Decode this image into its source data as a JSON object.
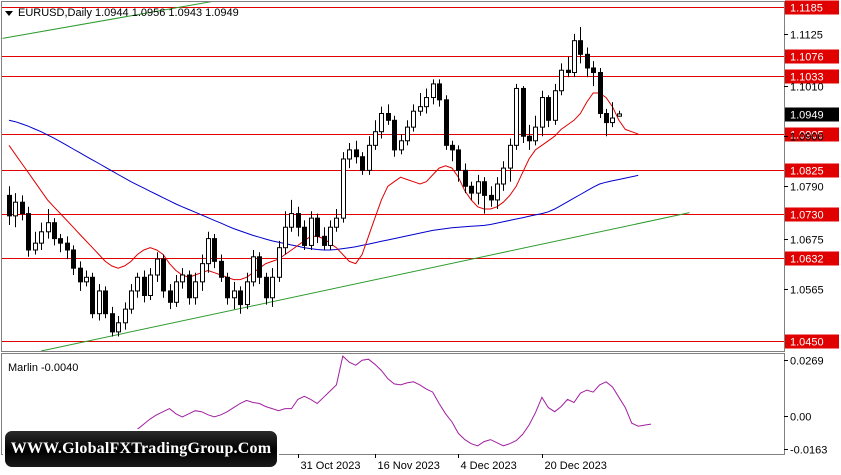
{
  "header": {
    "symbol_line": "EURUSD,Daily  1.0944 1.0956 1.0943 1.0949"
  },
  "indicator": {
    "label": "Marlin -0.0040"
  },
  "watermark": {
    "text": "WWW.GlobalFXTradingGroup.Com"
  },
  "colors": {
    "bull": "#ffffff",
    "bear": "#000000",
    "wick": "#000000",
    "level_line": "#e00000",
    "level_tag": "#e00000",
    "ma_fast": "#e00000",
    "ma_slow": "#0000cc",
    "trend": "#2e9b2e",
    "oscillator": "#a020a0",
    "current_tag_bg": "#000000",
    "current_tag_fg": "#ffffff"
  },
  "chart_data": [
    {
      "type": "candlestick",
      "title": "EURUSD,Daily",
      "ohlc_last": {
        "open": 1.0944,
        "high": 1.0956,
        "low": 1.0943,
        "close": 1.0949
      },
      "y_ticks": [
        "1.1125",
        "1.1010",
        "1.0900",
        "1.0790",
        "1.0675",
        "1.0565"
      ],
      "y_range": [
        1.0428,
        1.1195
      ],
      "x_tick_labels": [
        "31 Oct 2023",
        "16 Nov 2023",
        "4 Dec 2023",
        "20 Dec 2023"
      ],
      "x_tick_index": [
        45,
        57,
        70,
        83
      ],
      "current_price": "1.0949",
      "levels": [
        {
          "label": "1.1185",
          "value": 1.1185
        },
        {
          "label": "1.1076",
          "value": 1.1076
        },
        {
          "label": "1.1033",
          "value": 1.1033
        },
        {
          "label": "1.0905",
          "value": 1.0905
        },
        {
          "label": "1.0825",
          "value": 1.0825
        },
        {
          "label": "1.0730",
          "value": 1.073
        },
        {
          "label": "1.0632",
          "value": 1.0632
        },
        {
          "label": "1.0450",
          "value": 1.045
        }
      ],
      "candles": [
        [
          1.077,
          1.0725,
          1.079,
          1.0705
        ],
        [
          1.0725,
          1.0755,
          1.0775,
          1.07
        ],
        [
          1.0755,
          1.073,
          1.077,
          1.0715
        ],
        [
          1.073,
          1.065,
          1.0745,
          1.0635
        ],
        [
          1.065,
          1.0665,
          1.069,
          1.064
        ],
        [
          1.0665,
          1.069,
          1.071,
          1.065
        ],
        [
          1.069,
          1.071,
          1.074,
          1.0675
        ],
        [
          1.071,
          1.0675,
          1.072,
          1.066
        ],
        [
          1.0675,
          1.0665,
          1.0685,
          1.0645
        ],
        [
          1.0665,
          1.065,
          1.068,
          1.063
        ],
        [
          1.065,
          1.061,
          1.066,
          1.0595
        ],
        [
          1.061,
          1.058,
          1.0625,
          1.056
        ],
        [
          1.058,
          1.059,
          1.0605,
          1.057
        ],
        [
          1.059,
          1.051,
          1.06,
          1.05
        ],
        [
          1.051,
          1.056,
          1.0575,
          1.0495
        ],
        [
          1.056,
          1.051,
          1.057,
          1.05
        ],
        [
          1.051,
          1.047,
          1.0525,
          1.046
        ],
        [
          1.047,
          1.049,
          1.0505,
          1.046
        ],
        [
          1.049,
          1.052,
          1.0535,
          1.0475
        ],
        [
          1.052,
          1.056,
          1.0575,
          1.051
        ],
        [
          1.056,
          1.059,
          1.06,
          1.0545
        ],
        [
          1.059,
          1.055,
          1.0605,
          1.0535
        ],
        [
          1.055,
          1.0595,
          1.061,
          1.054
        ],
        [
          1.0595,
          1.063,
          1.0645,
          1.058
        ],
        [
          1.063,
          1.056,
          1.064,
          1.0545
        ],
        [
          1.056,
          1.0535,
          1.0575,
          1.052
        ],
        [
          1.0535,
          1.058,
          1.0595,
          1.0525
        ],
        [
          1.058,
          1.0595,
          1.061,
          1.0565
        ],
        [
          1.0595,
          1.0545,
          1.0605,
          1.053
        ],
        [
          1.0545,
          1.058,
          1.06,
          1.053
        ],
        [
          1.058,
          1.062,
          1.064,
          1.056
        ],
        [
          1.062,
          1.0675,
          1.069,
          1.06
        ],
        [
          1.0675,
          1.0625,
          1.0685,
          1.061
        ],
        [
          1.0625,
          1.059,
          1.064,
          1.058
        ],
        [
          1.059,
          1.0545,
          1.06,
          1.053
        ],
        [
          1.0545,
          1.056,
          1.058,
          1.052
        ],
        [
          1.056,
          1.053,
          1.057,
          1.051
        ],
        [
          1.053,
          1.058,
          1.06,
          1.052
        ],
        [
          1.058,
          1.0635,
          1.065,
          1.057
        ],
        [
          1.0635,
          1.059,
          1.0645,
          1.0575
        ],
        [
          1.059,
          1.0545,
          1.06,
          1.053
        ],
        [
          1.0545,
          1.059,
          1.061,
          1.0525
        ],
        [
          1.059,
          1.0655,
          1.067,
          1.058
        ],
        [
          1.0655,
          1.07,
          1.0735,
          1.064
        ],
        [
          1.07,
          1.073,
          1.076,
          1.069
        ],
        [
          1.073,
          1.07,
          1.0745,
          1.068
        ],
        [
          1.07,
          1.066,
          1.0715,
          1.065
        ],
        [
          1.066,
          1.072,
          1.0735,
          1.065
        ],
        [
          1.072,
          1.068,
          1.073,
          1.0665
        ],
        [
          1.068,
          1.066,
          1.07,
          1.065
        ],
        [
          1.066,
          1.07,
          1.0715,
          1.065
        ],
        [
          1.07,
          1.072,
          1.074,
          1.069
        ],
        [
          1.072,
          1.085,
          1.0865,
          1.071
        ],
        [
          1.085,
          1.087,
          1.0885,
          1.083
        ],
        [
          1.087,
          1.0855,
          1.089,
          1.084
        ],
        [
          1.0855,
          1.0825,
          1.0865,
          1.0815
        ],
        [
          1.0825,
          1.088,
          1.09,
          1.0815
        ],
        [
          1.088,
          1.091,
          1.0935,
          1.087
        ],
        [
          1.091,
          1.095,
          1.0965,
          1.0895
        ],
        [
          1.095,
          1.0935,
          1.097,
          1.0925
        ],
        [
          1.0935,
          1.087,
          1.0945,
          1.0855
        ],
        [
          1.087,
          1.089,
          1.0905,
          1.086
        ],
        [
          1.089,
          1.092,
          1.0935,
          1.088
        ],
        [
          1.092,
          1.0955,
          1.097,
          1.091
        ],
        [
          1.0955,
          1.0965,
          1.0995,
          1.0945
        ],
        [
          1.0965,
          1.0985,
          1.1005,
          1.095
        ],
        [
          1.0985,
          1.1015,
          1.1025,
          1.097
        ],
        [
          1.1015,
          1.098,
          1.1025,
          1.0965
        ],
        [
          1.098,
          1.088,
          1.099,
          1.087
        ],
        [
          1.088,
          1.087,
          1.089,
          1.0845
        ],
        [
          1.087,
          1.0825,
          1.088,
          1.08
        ],
        [
          1.0825,
          1.079,
          1.084,
          1.0775
        ],
        [
          1.079,
          1.0775,
          1.08,
          1.076
        ],
        [
          1.0775,
          1.08,
          1.0815,
          1.075
        ],
        [
          1.08,
          1.077,
          1.081,
          1.073
        ],
        [
          1.077,
          1.076,
          1.079,
          1.0745
        ],
        [
          1.076,
          1.0795,
          1.081,
          1.074
        ],
        [
          1.0795,
          1.083,
          1.0845,
          1.078
        ],
        [
          1.083,
          1.088,
          1.0895,
          1.08
        ],
        [
          1.088,
          1.1005,
          1.1015,
          1.087
        ],
        [
          1.1005,
          1.09,
          1.101,
          1.0885
        ],
        [
          1.09,
          1.089,
          1.0925,
          1.087
        ],
        [
          1.089,
          1.092,
          1.0945,
          1.088
        ],
        [
          1.092,
          1.0985,
          1.1,
          1.09
        ],
        [
          1.0985,
          1.0935,
          1.099,
          1.092
        ],
        [
          1.0935,
          1.1,
          1.1015,
          1.0925
        ],
        [
          1.1,
          1.1045,
          1.106,
          1.099
        ],
        [
          1.1045,
          1.104,
          1.1075,
          1.103
        ],
        [
          1.104,
          1.111,
          1.1125,
          1.103
        ],
        [
          1.111,
          1.108,
          1.114,
          1.106
        ],
        [
          1.108,
          1.105,
          1.1095,
          1.103
        ],
        [
          1.105,
          1.104,
          1.1065,
          1.101
        ],
        [
          1.104,
          1.095,
          1.105,
          1.094
        ],
        [
          1.095,
          1.093,
          1.096,
          1.09
        ],
        [
          1.093,
          1.094,
          1.0975,
          1.092
        ],
        [
          1.0944,
          1.0949,
          1.0956,
          1.0943
        ]
      ],
      "ma_fast_values": [
        1.088,
        1.086,
        1.084,
        1.082,
        1.08,
        1.078,
        1.076,
        1.0745,
        1.073,
        1.0715,
        1.07,
        1.0685,
        1.067,
        1.0655,
        1.064,
        1.0625,
        1.0615,
        1.061,
        1.0615,
        1.0625,
        1.064,
        1.065,
        1.0655,
        1.065,
        1.064,
        1.062,
        1.0605,
        1.0595,
        1.059,
        1.0595,
        1.06,
        1.0605,
        1.06,
        1.0595,
        1.059,
        1.0585,
        1.0585,
        1.059,
        1.06,
        1.061,
        1.062,
        1.0625,
        1.063,
        1.064,
        1.065,
        1.066,
        1.067,
        1.068,
        1.068,
        1.0675,
        1.0665,
        1.0655,
        1.064,
        1.0625,
        1.062,
        1.064,
        1.068,
        1.072,
        1.076,
        1.079,
        1.08,
        1.081,
        1.0805,
        1.08,
        1.0795,
        1.08,
        1.0815,
        1.083,
        1.0835,
        1.083,
        1.081,
        1.078,
        1.076,
        1.0745,
        1.074,
        1.074,
        1.0745,
        1.0755,
        1.077,
        1.079,
        1.082,
        1.085,
        1.087,
        1.088,
        1.089,
        1.09,
        1.0915,
        1.0925,
        1.0935,
        1.095,
        1.0975,
        1.0995,
        1.0995,
        1.0985,
        1.0965,
        1.0935,
        1.0915,
        1.091,
        1.0905
      ],
      "ma_slow_values": [
        1.0935,
        1.0932,
        1.0927,
        1.0922,
        1.0916,
        1.091,
        1.0903,
        1.0896,
        1.0888,
        1.088,
        1.0872,
        1.0864,
        1.0856,
        1.0848,
        1.084,
        1.0832,
        1.0824,
        1.0816,
        1.0808,
        1.08,
        1.0793,
        1.0786,
        1.0779,
        1.0772,
        1.0765,
        1.0758,
        1.0751,
        1.0745,
        1.0739,
        1.0733,
        1.0727,
        1.0721,
        1.0715,
        1.0709,
        1.0703,
        1.0697,
        1.0692,
        1.0687,
        1.0682,
        1.0678,
        1.0674,
        1.067,
        1.0667,
        1.0664,
        1.0661,
        1.0658,
        1.0655,
        1.0653,
        1.0651,
        1.065,
        1.065,
        1.0651,
        1.0653,
        1.0655,
        1.0657,
        1.066,
        1.0663,
        1.0666,
        1.0669,
        1.0672,
        1.0675,
        1.0678,
        1.0681,
        1.0684,
        1.0687,
        1.069,
        1.0693,
        1.0695,
        1.0697,
        1.0699,
        1.07,
        1.0701,
        1.0702,
        1.0703,
        1.0704,
        1.0706,
        1.0709,
        1.0712,
        1.0715,
        1.0718,
        1.0721,
        1.0724,
        1.0727,
        1.073,
        1.0734,
        1.074,
        1.0748,
        1.0756,
        1.0764,
        1.0772,
        1.078,
        1.0788,
        1.0795,
        1.0799,
        1.0802,
        1.0805,
        1.0808,
        1.0811,
        1.0814
      ],
      "trendlines": [
        {
          "from": [
            -1,
            1.1115
          ],
          "to": [
            34,
            1.1202
          ]
        },
        {
          "from": [
            5,
            1.0428
          ],
          "to": [
            106,
            1.0732
          ]
        }
      ]
    },
    {
      "type": "line",
      "title": "Marlin -0.0040",
      "y_ticks": [
        "0.0269",
        "0.00",
        "-0.0163"
      ],
      "y_range": [
        -0.0185,
        0.03
      ],
      "series": [
        {
          "values": [
            -0.008,
            -0.01,
            -0.012,
            -0.0125,
            -0.0115,
            -0.01,
            -0.0095,
            -0.011,
            -0.014,
            -0.015,
            -0.0145,
            -0.013,
            -0.012,
            -0.011,
            -0.0115,
            -0.0135,
            -0.015,
            -0.014,
            -0.0115,
            -0.009,
            -0.0065,
            -0.004,
            -0.0015,
            0.0005,
            0.002,
            0.0035,
            0.001,
            -0.0005,
            0.001,
            0.0025,
            0.002,
            0.0005,
            -0.0005,
            0.0005,
            0.002,
            0.004,
            0.006,
            0.0075,
            0.0065,
            0.006,
            0.0045,
            0.0035,
            0.0025,
            0.0035,
            0.0035,
            0.008,
            0.0095,
            0.008,
            0.006,
            0.009,
            0.012,
            0.015,
            0.029,
            0.026,
            0.0245,
            0.027,
            0.0275,
            0.025,
            0.022,
            0.018,
            0.0155,
            0.015,
            0.016,
            0.0165,
            0.015,
            0.013,
            0.0115,
            0.006,
            0.001,
            -0.003,
            -0.0085,
            -0.0115,
            -0.0135,
            -0.0145,
            -0.0125,
            -0.0115,
            -0.013,
            -0.0145,
            -0.0135,
            -0.012,
            -0.009,
            -0.0045,
            0.0015,
            0.009,
            0.004,
            0.002,
            0.0045,
            0.008,
            0.0065,
            0.011,
            0.0125,
            0.0115,
            0.015,
            0.0165,
            0.014,
            0.009,
            0.004,
            -0.0035,
            -0.005,
            -0.0045,
            -0.004
          ]
        }
      ]
    }
  ]
}
